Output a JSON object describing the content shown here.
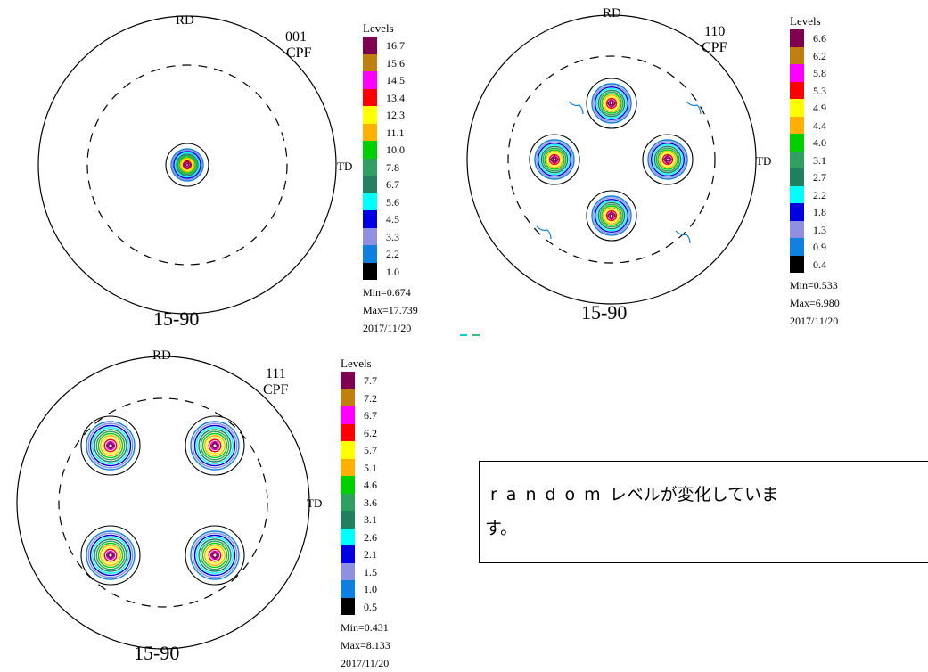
{
  "figures": [
    {
      "plane": "001",
      "type_label": "CPF",
      "rd_label": "RD",
      "td_label": "TD",
      "condition": "15-90",
      "legend_title": "Levels",
      "levels": [
        "16.7",
        "15.6",
        "14.5",
        "13.4",
        "12.3",
        "11.1",
        "10.0",
        "7.8",
        "6.7",
        "5.6",
        "4.5",
        "3.3",
        "2.2",
        "1.0"
      ],
      "min": "Min=0.674",
      "max": "Max=17.739",
      "date": "2017/11/20"
    },
    {
      "plane": "110",
      "type_label": "CPF",
      "rd_label": "RD",
      "td_label": "TD",
      "condition": "15-90",
      "legend_title": "Levels",
      "levels": [
        "6.6",
        "6.2",
        "5.8",
        "5.3",
        "4.9",
        "4.4",
        "4.0",
        "3.1",
        "2.7",
        "2.2",
        "1.8",
        "1.3",
        "0.9",
        "0.4"
      ],
      "min": "Min=0.533",
      "max": "Max=6.980",
      "date": "2017/11/20"
    },
    {
      "plane": "111",
      "type_label": "CPF",
      "rd_label": "RD",
      "td_label": "TD",
      "condition": "15-90",
      "legend_title": "Levels",
      "levels": [
        "7.7",
        "7.2",
        "6.7",
        "6.2",
        "5.7",
        "5.1",
        "4.6",
        "3.6",
        "3.1",
        "2.6",
        "2.1",
        "1.5",
        "1.0",
        "0.5"
      ],
      "min": "Min=0.431",
      "max": "Max=8.133",
      "date": "2017/11/20"
    }
  ],
  "level_colors": [
    "#800050",
    "#c08010",
    "#ff00ff",
    "#ff0000",
    "#ffff00",
    "#ffb000",
    "#00d000",
    "#30a060",
    "#208060",
    "#00ffff",
    "#0000e0",
    "#9090e0",
    "#1080e0",
    "#000000"
  ],
  "note": {
    "latin": "random",
    "japanese": "レベルが変化していま",
    "wrap": "す。"
  }
}
